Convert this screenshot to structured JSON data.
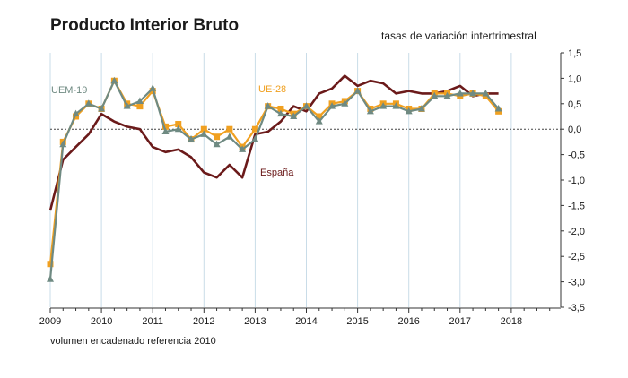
{
  "chart_data": {
    "type": "line",
    "title": "Producto Interior Bruto",
    "subtitle": "tasas de variación intertrimestral",
    "footnote": "volumen encadenado referencia 2010",
    "x_start": "2009-Q1",
    "frequency": "quarterly",
    "x_ticks": [
      "2009",
      "2010",
      "2011",
      "2012",
      "2013",
      "2014",
      "2015",
      "2016",
      "2017",
      "2018"
    ],
    "y_ticks": [
      "1,5",
      "1,0",
      "0,5",
      "0,0",
      "-0,5",
      "-1,0",
      "-1,5",
      "-2,0",
      "-2,5",
      "-3,0",
      "-3,5"
    ],
    "ylim": [
      -3.5,
      1.5
    ],
    "y_axis_side": "right",
    "zero_line": "dotted",
    "series": [
      {
        "name": "España",
        "color": "#6b1a1a",
        "marker": "none",
        "values": [
          -1.6,
          -0.6,
          -0.35,
          -0.1,
          0.3,
          0.15,
          0.05,
          0.0,
          -0.35,
          -0.45,
          -0.4,
          -0.55,
          -0.85,
          -0.95,
          -0.7,
          -0.95,
          -0.1,
          -0.05,
          0.15,
          0.45,
          0.35,
          0.7,
          0.8,
          1.05,
          0.85,
          0.95,
          0.9,
          0.7,
          0.75,
          0.7,
          0.7,
          0.75,
          0.85,
          0.65,
          0.7,
          0.7
        ]
      },
      {
        "name": "UE-28",
        "color": "#f0a020",
        "marker": "square",
        "values": [
          -2.65,
          -0.25,
          0.25,
          0.5,
          0.4,
          0.95,
          0.5,
          0.45,
          0.75,
          0.05,
          0.1,
          -0.2,
          0.0,
          -0.15,
          0.0,
          -0.35,
          0.0,
          0.45,
          0.4,
          0.3,
          0.45,
          0.25,
          0.5,
          0.55,
          0.75,
          0.4,
          0.5,
          0.5,
          0.4,
          0.4,
          0.7,
          0.7,
          0.65,
          0.7,
          0.65,
          0.35
        ]
      },
      {
        "name": "UEM-19",
        "color": "#6f8a82",
        "marker": "triangle",
        "values": [
          -2.95,
          -0.3,
          0.3,
          0.5,
          0.4,
          0.95,
          0.45,
          0.55,
          0.8,
          -0.05,
          0.0,
          -0.2,
          -0.1,
          -0.3,
          -0.15,
          -0.4,
          -0.2,
          0.45,
          0.3,
          0.25,
          0.45,
          0.15,
          0.45,
          0.5,
          0.75,
          0.35,
          0.45,
          0.45,
          0.35,
          0.4,
          0.65,
          0.65,
          0.7,
          0.7,
          0.7,
          0.4
        ]
      }
    ]
  }
}
